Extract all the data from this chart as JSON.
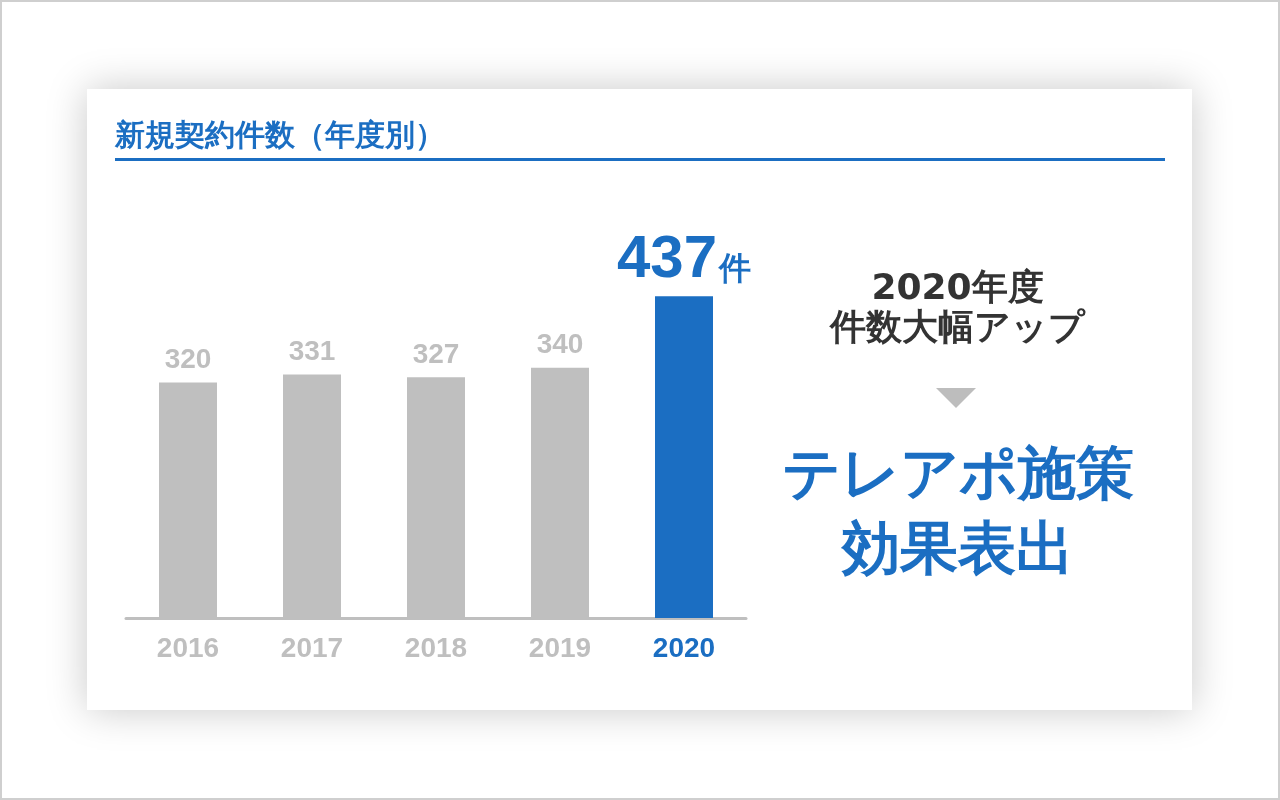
{
  "chart_data": {
    "type": "bar",
    "title": "新規契約件数（年度別）",
    "categories": [
      "2016",
      "2017",
      "2018",
      "2019",
      "2020"
    ],
    "values": [
      320,
      331,
      327,
      340,
      437
    ],
    "colors": [
      "#bfbfbf",
      "#bfbfbf",
      "#bfbfbf",
      "#bfbfbf",
      "#1b6ec2"
    ],
    "value_labels": [
      "320",
      "331",
      "327",
      "340",
      "437件"
    ],
    "annotations": [
      "2020年度",
      "件数大幅アップ",
      "テレアポ施策",
      "効果表出"
    ],
    "grid": false
  }
}
